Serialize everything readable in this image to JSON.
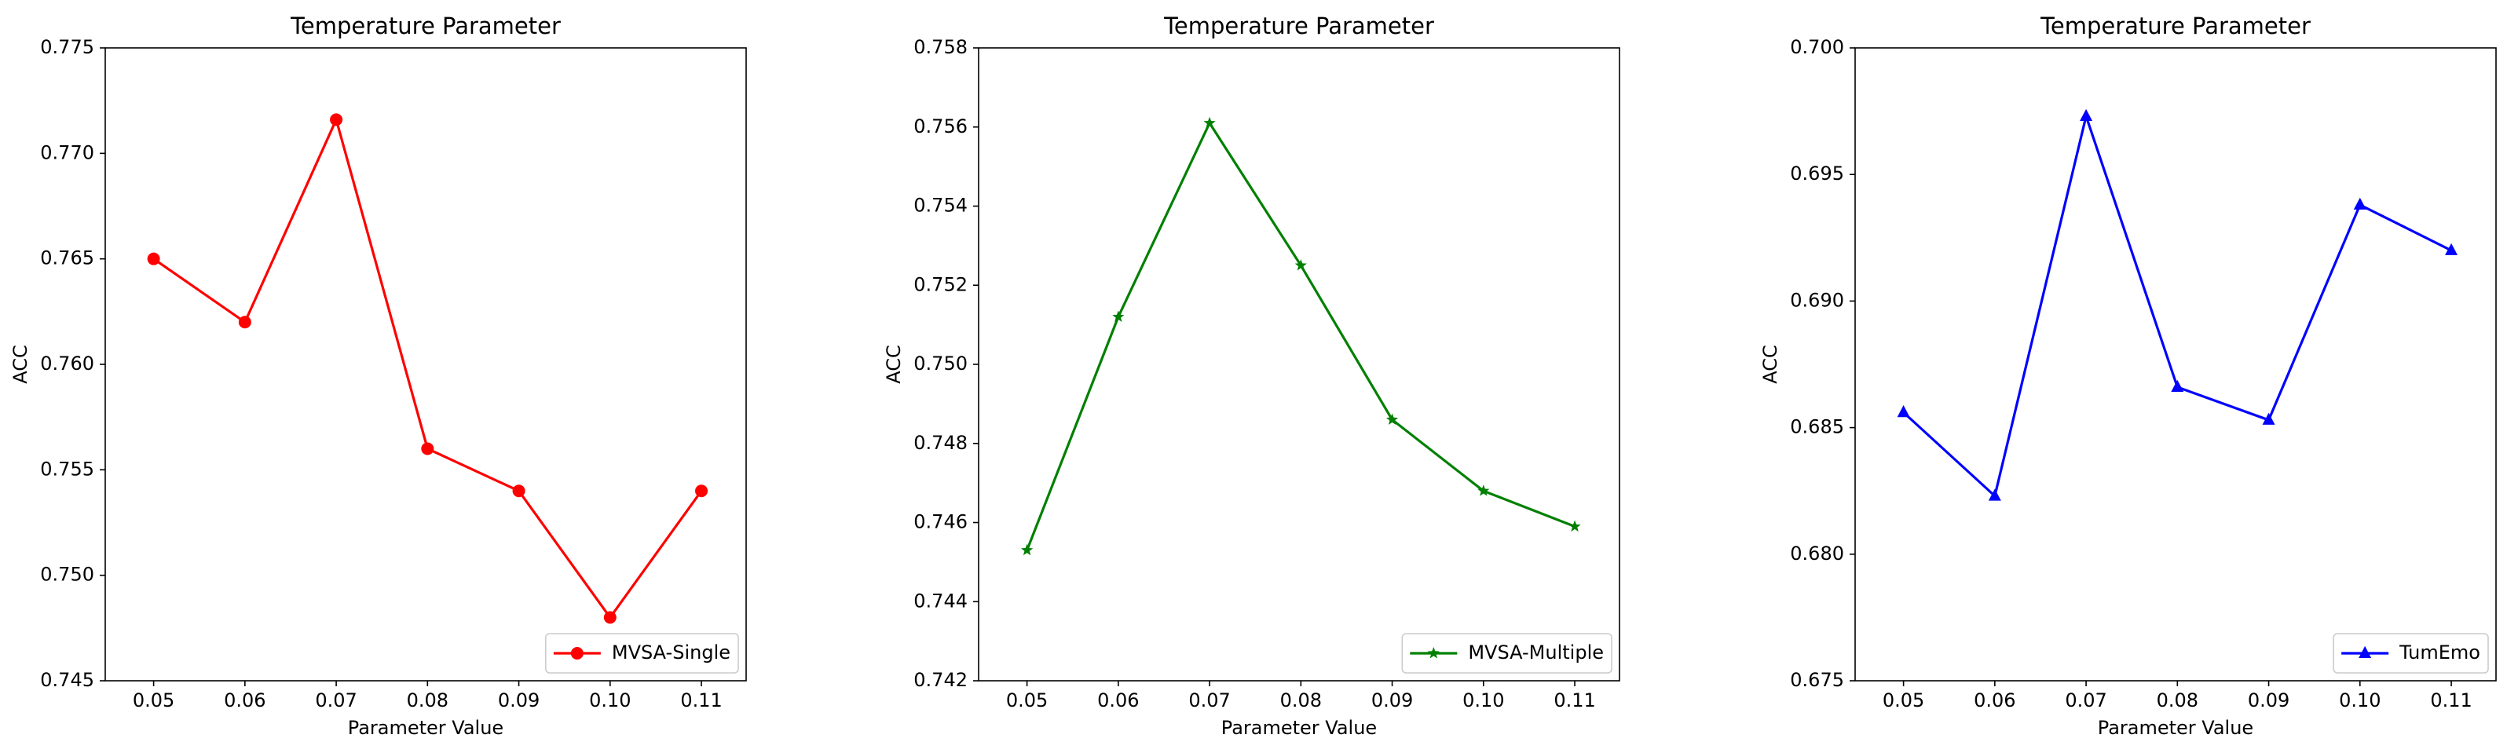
{
  "chart_data": [
    {
      "type": "line",
      "title": "Temperature Parameter",
      "xlabel": "Parameter Value",
      "ylabel": "ACC",
      "x": [
        0.05,
        0.06,
        0.07,
        0.08,
        0.09,
        0.1,
        0.11
      ],
      "xlim": [
        0.0447,
        0.1149
      ],
      "xticks": [
        0.05,
        0.06,
        0.07,
        0.08,
        0.09,
        {
          "value": 0.1,
          "label": "0.10"
        },
        0.11
      ],
      "ylim": [
        0.745,
        0.775
      ],
      "yticks": [
        0.745,
        {
          "value": 0.75,
          "label": "0.750"
        },
        0.755,
        {
          "value": 0.76,
          "label": "0.760"
        },
        0.765,
        {
          "value": 0.77,
          "label": "0.770"
        },
        0.775
      ],
      "legend": "lower right",
      "series": [
        {
          "name": "MVSA-Single",
          "color": "#ff0000",
          "marker": "circle",
          "values": [
            0.765,
            0.762,
            0.7716,
            0.756,
            0.754,
            0.748,
            0.754
          ]
        }
      ]
    },
    {
      "type": "line",
      "title": "Temperature Parameter",
      "xlabel": "Parameter Value",
      "ylabel": "ACC",
      "x": [
        0.05,
        0.06,
        0.07,
        0.08,
        0.09,
        0.1,
        0.11
      ],
      "xlim": [
        0.0447,
        0.1149
      ],
      "xticks": [
        0.05,
        0.06,
        0.07,
        0.08,
        0.09,
        {
          "value": 0.1,
          "label": "0.10"
        },
        0.11
      ],
      "ylim": [
        0.742,
        0.758
      ],
      "yticks": [
        0.742,
        0.744,
        0.746,
        0.748,
        {
          "value": 0.75,
          "label": "0.750"
        },
        0.752,
        0.754,
        0.756,
        0.758
      ],
      "legend": "lower right",
      "series": [
        {
          "name": "MVSA-Multiple",
          "color": "#008000",
          "marker": "star",
          "values": [
            0.7453,
            0.7512,
            0.7561,
            0.7525,
            0.7486,
            0.7468,
            0.7459
          ]
        }
      ]
    },
    {
      "type": "line",
      "title": "Temperature Parameter",
      "xlabel": "Parameter Value",
      "ylabel": "ACC",
      "x": [
        0.05,
        0.06,
        0.07,
        0.08,
        0.09,
        0.1,
        0.11
      ],
      "xlim": [
        0.0447,
        0.1149
      ],
      "xticks": [
        0.05,
        0.06,
        0.07,
        0.08,
        0.09,
        {
          "value": 0.1,
          "label": "0.10"
        },
        0.11
      ],
      "ylim": [
        0.675,
        0.7
      ],
      "yticks": [
        0.675,
        {
          "value": 0.68,
          "label": "0.680"
        },
        0.685,
        {
          "value": 0.69,
          "label": "0.690"
        },
        0.695,
        {
          "value": 0.7,
          "label": "0.700"
        }
      ],
      "legend": "lower right",
      "series": [
        {
          "name": "TumEmo",
          "color": "#0000ff",
          "marker": "triangle",
          "values": [
            0.6856,
            0.6823,
            0.6973,
            0.6866,
            0.6853,
            0.6938,
            0.692
          ]
        }
      ]
    }
  ]
}
